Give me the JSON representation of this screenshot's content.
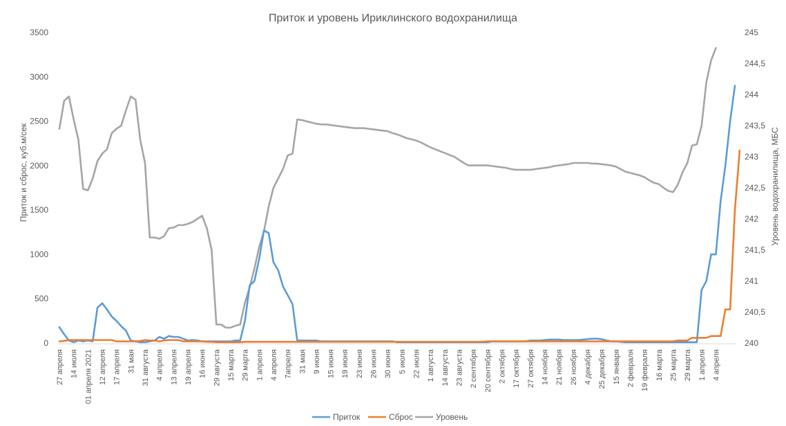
{
  "colors": {
    "inflow": "#5b9bd5",
    "discharge": "#ed7d31",
    "level": "#a5a5a5",
    "axis_text": "#595959",
    "title_text": "#595959",
    "grid": "#d9d9d9"
  },
  "chart_data": {
    "type": "line",
    "title": "Приток и уровень Ириклинского водохранилища",
    "ylabel": "Приток и сброс, куб.м/сек",
    "y2label": "Уровень водохранилища, МБС",
    "ylim": [
      0,
      3500
    ],
    "yticks": [
      0,
      500,
      1000,
      1500,
      2000,
      2500,
      3000,
      3500
    ],
    "y2lim": [
      240,
      245
    ],
    "y2ticks": [
      "240",
      "240,5",
      "241",
      "241,5",
      "242",
      "242,5",
      "243",
      "243,5",
      "244",
      "244,5",
      "245"
    ],
    "y2tick_values": [
      240,
      240.5,
      241,
      241.5,
      242,
      242.5,
      243,
      243.5,
      244,
      244.5,
      245
    ],
    "grid": false,
    "legend_position": "bottom",
    "xtick_labels": [
      {
        "i": 0,
        "label": "27 апреля"
      },
      {
        "i": 3,
        "label": "14 июля"
      },
      {
        "i": 6,
        "label": "01 апреля 2021"
      },
      {
        "i": 9,
        "label": "12 апреля"
      },
      {
        "i": 12,
        "label": "17 апреля"
      },
      {
        "i": 15,
        "label": "31 мая"
      },
      {
        "i": 18,
        "label": "31 августа"
      },
      {
        "i": 21,
        "label": "4 апреля"
      },
      {
        "i": 24,
        "label": "13 апреля"
      },
      {
        "i": 27,
        "label": "19 апреля"
      },
      {
        "i": 30,
        "label": "16 июня"
      },
      {
        "i": 33,
        "label": "29 августа"
      },
      {
        "i": 36,
        "label": "15 марта"
      },
      {
        "i": 39,
        "label": "29 марта"
      },
      {
        "i": 42,
        "label": "1 апреля"
      },
      {
        "i": 45,
        "label": "4 апреля"
      },
      {
        "i": 48,
        "label": "7апреля"
      },
      {
        "i": 51,
        "label": "31 мая"
      },
      {
        "i": 54,
        "label": "9 июня"
      },
      {
        "i": 57,
        "label": "15 июня"
      },
      {
        "i": 60,
        "label": "19 июня"
      },
      {
        "i": 63,
        "label": "23 июня"
      },
      {
        "i": 66,
        "label": "26 июня"
      },
      {
        "i": 69,
        "label": "30 июня"
      },
      {
        "i": 72,
        "label": "5 июля"
      },
      {
        "i": 75,
        "label": "22 июля"
      },
      {
        "i": 78,
        "label": "1 августа"
      },
      {
        "i": 81,
        "label": "14 августа"
      },
      {
        "i": 84,
        "label": "23 августа"
      },
      {
        "i": 87,
        "label": "2 сентября"
      },
      {
        "i": 90,
        "label": "20 сентября"
      },
      {
        "i": 93,
        "label": "2 октября"
      },
      {
        "i": 96,
        "label": "17 октября"
      },
      {
        "i": 99,
        "label": "27 октября"
      },
      {
        "i": 102,
        "label": "14 ноября"
      },
      {
        "i": 105,
        "label": "21 ноября"
      },
      {
        "i": 108,
        "label": "26 ноября"
      },
      {
        "i": 111,
        "label": "4 декабря"
      },
      {
        "i": 114,
        "label": "25 декабря"
      },
      {
        "i": 117,
        "label": "15 января"
      },
      {
        "i": 120,
        "label": "2 февраля"
      },
      {
        "i": 123,
        "label": "19 февраля"
      },
      {
        "i": 126,
        "label": "16 марта"
      },
      {
        "i": 129,
        "label": "25 марта"
      },
      {
        "i": 132,
        "label": "29 марта"
      },
      {
        "i": 135,
        "label": "1 апреля"
      },
      {
        "i": 138,
        "label": "4 апреля"
      }
    ],
    "series": [
      {
        "name": "Приток",
        "axis": "left",
        "values": [
          180,
          100,
          30,
          10,
          30,
          20,
          30,
          20,
          400,
          450,
          380,
          300,
          250,
          190,
          140,
          30,
          20,
          10,
          10,
          20,
          30,
          70,
          50,
          80,
          70,
          70,
          50,
          30,
          35,
          30,
          20,
          20,
          20,
          20,
          20,
          20,
          20,
          30,
          30,
          250,
          650,
          700,
          950,
          1270,
          1240,
          910,
          820,
          640,
          540,
          440,
          30,
          30,
          30,
          30,
          30,
          20,
          20,
          20,
          20,
          20,
          20,
          20,
          20,
          20,
          20,
          20,
          20,
          20,
          20,
          20,
          20,
          10,
          10,
          10,
          10,
          10,
          10,
          10,
          10,
          10,
          10,
          10,
          10,
          10,
          10,
          10,
          10,
          10,
          10,
          10,
          10,
          20,
          20,
          20,
          20,
          20,
          20,
          20,
          20,
          30,
          30,
          30,
          35,
          40,
          40,
          40,
          35,
          35,
          35,
          35,
          40,
          45,
          50,
          50,
          45,
          30,
          20,
          20,
          15,
          10,
          10,
          10,
          10,
          10,
          10,
          10,
          10,
          10,
          10,
          10,
          10,
          10,
          10,
          10,
          10,
          600,
          700,
          1000,
          1000,
          1600,
          2000,
          2500,
          2900
        ]
      },
      {
        "name": "Сброс",
        "axis": "left",
        "values": [
          20,
          25,
          35,
          35,
          35,
          35,
          35,
          35,
          35,
          35,
          35,
          35,
          20,
          20,
          20,
          20,
          20,
          25,
          35,
          30,
          30,
          20,
          30,
          35,
          35,
          35,
          20,
          20,
          20,
          20,
          20,
          15,
          15,
          10,
          10,
          10,
          10,
          10,
          10,
          15,
          15,
          15,
          15,
          15,
          15,
          15,
          15,
          15,
          15,
          15,
          15,
          15,
          15,
          15,
          15,
          15,
          15,
          15,
          15,
          15,
          15,
          15,
          15,
          15,
          15,
          15,
          15,
          15,
          15,
          15,
          15,
          15,
          15,
          15,
          15,
          15,
          15,
          15,
          15,
          15,
          15,
          15,
          15,
          15,
          15,
          15,
          15,
          15,
          15,
          15,
          20,
          20,
          20,
          20,
          20,
          20,
          20,
          20,
          20,
          20,
          20,
          20,
          20,
          20,
          20,
          20,
          20,
          20,
          20,
          20,
          20,
          20,
          20,
          20,
          20,
          20,
          20,
          20,
          20,
          20,
          20,
          20,
          20,
          20,
          20,
          20,
          20,
          20,
          20,
          20,
          30,
          30,
          30,
          60,
          60,
          60,
          60,
          80,
          80,
          80,
          380,
          380,
          1500,
          2170
        ]
      },
      {
        "name": "Уровень",
        "axis": "right",
        "values": [
          243.45,
          243.9,
          243.97,
          243.6,
          243.27,
          242.48,
          242.46,
          242.65,
          242.93,
          243.05,
          243.12,
          243.38,
          243.45,
          243.5,
          243.75,
          243.97,
          243.92,
          243.27,
          242.9,
          241.7,
          241.7,
          241.68,
          241.72,
          241.85,
          241.86,
          241.9,
          241.9,
          241.92,
          241.95,
          242.0,
          242.05,
          241.85,
          241.5,
          240.3,
          240.3,
          240.25,
          240.25,
          240.28,
          240.3,
          240.65,
          240.9,
          241.2,
          241.55,
          241.8,
          242.2,
          242.5,
          242.65,
          242.8,
          243.02,
          243.05,
          243.6,
          243.59,
          243.57,
          243.55,
          243.53,
          243.52,
          243.52,
          243.51,
          243.5,
          243.49,
          243.48,
          243.47,
          243.46,
          243.46,
          243.46,
          243.45,
          243.44,
          243.43,
          243.42,
          243.41,
          243.38,
          243.36,
          243.33,
          243.3,
          243.28,
          243.26,
          243.23,
          243.19,
          243.15,
          243.12,
          243.09,
          243.06,
          243.03,
          243.0,
          242.95,
          242.9,
          242.86,
          242.86,
          242.86,
          242.86,
          242.86,
          242.85,
          242.84,
          242.83,
          242.82,
          242.8,
          242.79,
          242.79,
          242.79,
          242.79,
          242.8,
          242.81,
          242.82,
          242.83,
          242.85,
          242.86,
          242.87,
          242.88,
          242.9,
          242.9,
          242.9,
          242.9,
          242.89,
          242.89,
          242.88,
          242.87,
          242.86,
          242.84,
          242.8,
          242.76,
          242.74,
          242.72,
          242.7,
          242.67,
          242.62,
          242.58,
          242.56,
          242.5,
          242.45,
          242.43,
          242.55,
          242.75,
          242.9,
          243.18,
          243.2,
          243.5,
          244.2,
          244.55,
          244.75
        ]
      }
    ]
  }
}
